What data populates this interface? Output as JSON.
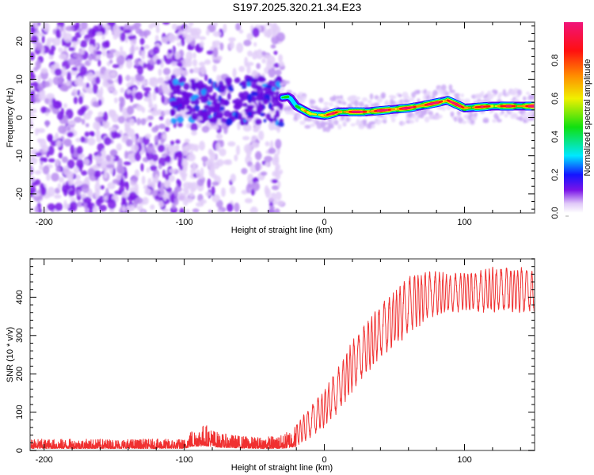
{
  "title": "S197.2025.320.21.34.E23",
  "chart_data": [
    {
      "type": "heatmap",
      "name": "spectrogram",
      "xlabel": "Height of straight line (km)",
      "ylabel": "Frequency (Hz)",
      "xlim": [
        -210,
        150
      ],
      "ylim": [
        -25,
        25
      ],
      "xticks": [
        -200,
        -100,
        0,
        100
      ],
      "yticks": [
        -20,
        -10,
        0,
        10,
        20
      ],
      "x_minor_step": 20,
      "y_minor_step": 2,
      "colorbar": {
        "label": "Normalized spectral amplitude",
        "range": [
          0,
          1
        ],
        "ticks": [
          "0.0",
          "0.2",
          "0.4",
          "0.6",
          "0.8"
        ],
        "colors": [
          "#ffffff",
          "#e0c8f8",
          "#7a14e8",
          "#1414ff",
          "#00e8ff",
          "#10e010",
          "#f0f000",
          "#ff8c00",
          "#ff1010",
          "#f0147a"
        ]
      },
      "ridge": {
        "description_points": [
          {
            "x": -35,
            "y": 5,
            "amp": 0.35
          },
          {
            "x": -25,
            "y": 5.5,
            "amp": 0.45
          },
          {
            "x": -20,
            "y": 3,
            "amp": 0.55
          },
          {
            "x": -10,
            "y": 1,
            "amp": 0.55
          },
          {
            "x": 0,
            "y": 0.5,
            "amp": 0.75
          },
          {
            "x": 10,
            "y": 1.5,
            "amp": 0.85
          },
          {
            "x": 30,
            "y": 1.5,
            "amp": 0.9
          },
          {
            "x": 60,
            "y": 2.5,
            "amp": 0.9
          },
          {
            "x": 75,
            "y": 3.5,
            "amp": 0.9
          },
          {
            "x": 88,
            "y": 4.5,
            "amp": 0.95
          },
          {
            "x": 100,
            "y": 2.5,
            "amp": 0.85
          },
          {
            "x": 120,
            "y": 3,
            "amp": 0.75
          },
          {
            "x": 150,
            "y": 3,
            "amp": 0.95
          }
        ]
      },
      "noise_regions": [
        {
          "x_range": [
            -210,
            -100
          ],
          "level": "scattered"
        },
        {
          "x_range": [
            -100,
            -30
          ],
          "level": "scattered-weak"
        }
      ]
    },
    {
      "type": "line",
      "name": "snr",
      "xlabel": "Height of straight line (km)",
      "ylabel": "SNR (10 * v/v)",
      "xlim": [
        -210,
        150
      ],
      "ylim": [
        0,
        500
      ],
      "xticks": [
        -200,
        -100,
        0,
        100
      ],
      "yticks": [
        0,
        100,
        200,
        300,
        400
      ],
      "x_minor_step": 20,
      "y_minor_step": 20,
      "color": "#f03030",
      "envelope": {
        "x": [
          -210,
          -100,
          -95,
          -85,
          -75,
          -50,
          -30,
          -20,
          -10,
          0,
          10,
          20,
          30,
          40,
          50,
          60,
          70,
          80,
          90,
          100,
          110,
          120,
          130,
          140,
          150
        ],
        "low": [
          5,
          5,
          10,
          12,
          8,
          5,
          5,
          10,
          30,
          60,
          100,
          150,
          200,
          240,
          270,
          300,
          330,
          350,
          360,
          360,
          360,
          360,
          360,
          360,
          360
        ],
        "high": [
          30,
          30,
          55,
          70,
          45,
          35,
          40,
          70,
          120,
          160,
          220,
          290,
          340,
          380,
          420,
          460,
          470,
          470,
          460,
          470,
          470,
          480,
          480,
          480,
          470
        ]
      }
    }
  ]
}
